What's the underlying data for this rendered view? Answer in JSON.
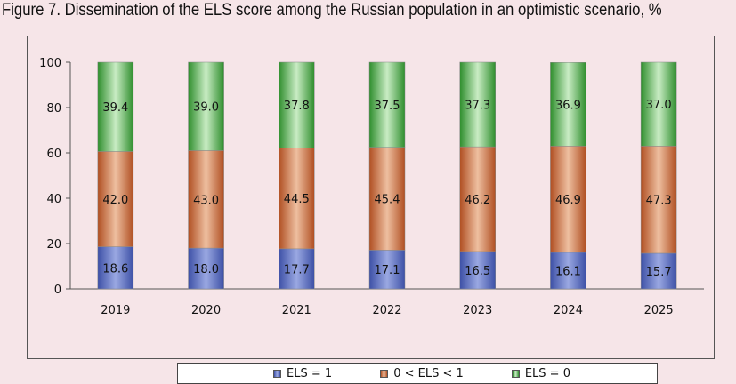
{
  "title": "Figure 7. Dissemination of the ELS score among the Russian population in an optimistic scenario, %",
  "colors": {
    "background": "#f6e5e8",
    "els1": "#5a6fc0",
    "els_between": "#c9673a",
    "els0": "#47a845"
  },
  "chart_data": {
    "type": "bar",
    "stacked": true,
    "categories": [
      "2019",
      "2020",
      "2021",
      "2022",
      "2023",
      "2024",
      "2025"
    ],
    "series": [
      {
        "name": "ELS = 1",
        "values": [
          18.6,
          18.0,
          17.7,
          17.1,
          16.5,
          16.1,
          15.7
        ]
      },
      {
        "name": "0 < ELS < 1",
        "values": [
          42.0,
          43.0,
          44.5,
          45.4,
          46.2,
          46.9,
          47.3
        ]
      },
      {
        "name": "ELS = 0",
        "values": [
          39.4,
          39.0,
          37.8,
          37.5,
          37.3,
          36.9,
          37.0
        ]
      }
    ],
    "value_labels": [
      [
        "18.6",
        "18.0",
        "17.7",
        "17.1",
        "16.5",
        "16.1",
        "15.7"
      ],
      [
        "42.0",
        "43.0",
        "44.5",
        "45.4",
        "46.2",
        "46.9",
        "47.3"
      ],
      [
        "39.4",
        "39.0",
        "37.8",
        "37.5",
        "37.3",
        "36.9",
        "37.0"
      ]
    ],
    "ylim": [
      0,
      100
    ],
    "yticks": [
      "0",
      "20",
      "40",
      "60",
      "80",
      "100"
    ],
    "grid": false,
    "legend_position": "bottom"
  }
}
